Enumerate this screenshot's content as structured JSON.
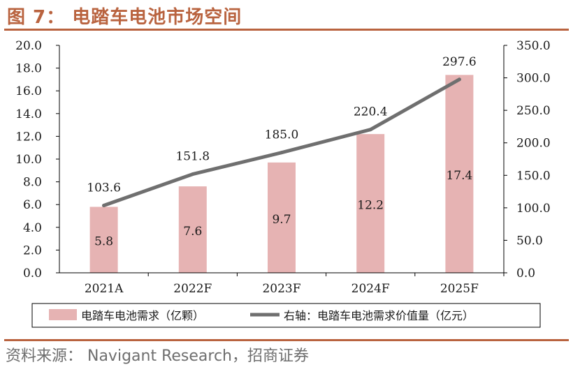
{
  "figure": {
    "title": "图 7：  电踏车电池市场空间",
    "source": "资料来源：  Navigant Research，招商证券"
  },
  "colors": {
    "accent": "#b9633f",
    "bar": "#e6b3b3",
    "line": "#6f6f6f",
    "text": "#1a1a1a",
    "axis": "#000000"
  },
  "chart_data": {
    "type": "bar+line",
    "categories": [
      "2021A",
      "2022F",
      "2023F",
      "2024F",
      "2025F"
    ],
    "series": [
      {
        "name": "电踏车电池需求（亿颗）",
        "kind": "bar",
        "axis": "left",
        "values": [
          5.8,
          7.6,
          9.7,
          12.2,
          17.4
        ],
        "labels": [
          "5.8",
          "7.6",
          "9.7",
          "12.2",
          "17.4"
        ]
      },
      {
        "name": "右轴：电踏车电池需求价值量（亿元）",
        "kind": "line",
        "axis": "right",
        "values": [
          103.6,
          151.8,
          185.0,
          220.4,
          297.6
        ],
        "labels": [
          "103.6",
          "151.8",
          "185.0",
          "220.4",
          "297.6"
        ]
      }
    ],
    "left_axis": {
      "min": 0,
      "max": 20,
      "step": 2,
      "tick_labels": [
        "0.0",
        "2.0",
        "4.0",
        "6.0",
        "8.0",
        "10.0",
        "12.0",
        "14.0",
        "16.0",
        "18.0",
        "20.0"
      ]
    },
    "right_axis": {
      "min": 0,
      "max": 350,
      "step": 50,
      "tick_labels": [
        "0.0",
        "50.0",
        "100.0",
        "150.0",
        "200.0",
        "250.0",
        "300.0",
        "350.0"
      ]
    },
    "legend_position": "bottom",
    "grid": false
  }
}
